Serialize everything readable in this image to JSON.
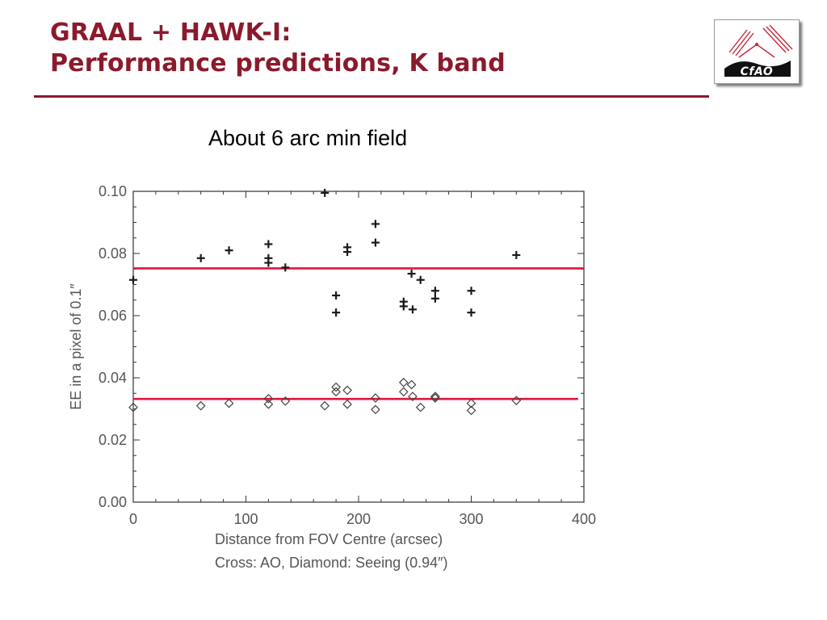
{
  "slide": {
    "title_line1": "GRAAL + HAWK-I:",
    "title_line2": "Performance predictions, K band",
    "subtitle": "About 6 arc min field",
    "logo_text": "CfAO"
  },
  "colors": {
    "title": "#8b1a2c",
    "reference_line": "#e0153a",
    "marker": "#1a1a1a"
  },
  "chart_data": {
    "type": "scatter",
    "xlabel": "Distance from FOV Centre (arcsec)",
    "xlabel2": "Cross: AO, Diamond: Seeing (0.94″)",
    "ylabel": "EE in a pixel of 0.1″",
    "xlim": [
      0,
      400
    ],
    "ylim": [
      0.0,
      0.1
    ],
    "xticks": [
      "0",
      "100",
      "200",
      "300",
      "400"
    ],
    "yticks": [
      "0.00",
      "0.02",
      "0.04",
      "0.06",
      "0.08",
      "0.10"
    ],
    "series": [
      {
        "name": "AO",
        "marker": "cross",
        "points": [
          [
            0,
            0.0715
          ],
          [
            60,
            0.0785
          ],
          [
            85,
            0.081
          ],
          [
            120,
            0.083
          ],
          [
            120,
            0.0785
          ],
          [
            120,
            0.077
          ],
          [
            135,
            0.0755
          ],
          [
            170,
            0.0995
          ],
          [
            180,
            0.0665
          ],
          [
            180,
            0.061
          ],
          [
            190,
            0.082
          ],
          [
            190,
            0.0805
          ],
          [
            215,
            0.0895
          ],
          [
            215,
            0.0835
          ],
          [
            240,
            0.0645
          ],
          [
            240,
            0.063
          ],
          [
            247,
            0.0735
          ],
          [
            248,
            0.062
          ],
          [
            255,
            0.0715
          ],
          [
            268,
            0.068
          ],
          [
            268,
            0.0655
          ],
          [
            300,
            0.068
          ],
          [
            300,
            0.061
          ],
          [
            340,
            0.0795
          ]
        ]
      },
      {
        "name": "Seeing",
        "marker": "diamond",
        "points": [
          [
            0,
            0.0305
          ],
          [
            60,
            0.031
          ],
          [
            85,
            0.0318
          ],
          [
            120,
            0.0333
          ],
          [
            120,
            0.0315
          ],
          [
            135,
            0.0325
          ],
          [
            170,
            0.031
          ],
          [
            180,
            0.037
          ],
          [
            180,
            0.0355
          ],
          [
            190,
            0.036
          ],
          [
            190,
            0.0315
          ],
          [
            215,
            0.0335
          ],
          [
            215,
            0.0298
          ],
          [
            240,
            0.0385
          ],
          [
            240,
            0.0355
          ],
          [
            247,
            0.0378
          ],
          [
            248,
            0.034
          ],
          [
            255,
            0.0305
          ],
          [
            268,
            0.034
          ],
          [
            268,
            0.0335
          ],
          [
            300,
            0.0318
          ],
          [
            300,
            0.0295
          ],
          [
            340,
            0.0327
          ]
        ]
      }
    ],
    "reference_lines": [
      {
        "y": 0.0752
      },
      {
        "y": 0.0332
      }
    ]
  }
}
